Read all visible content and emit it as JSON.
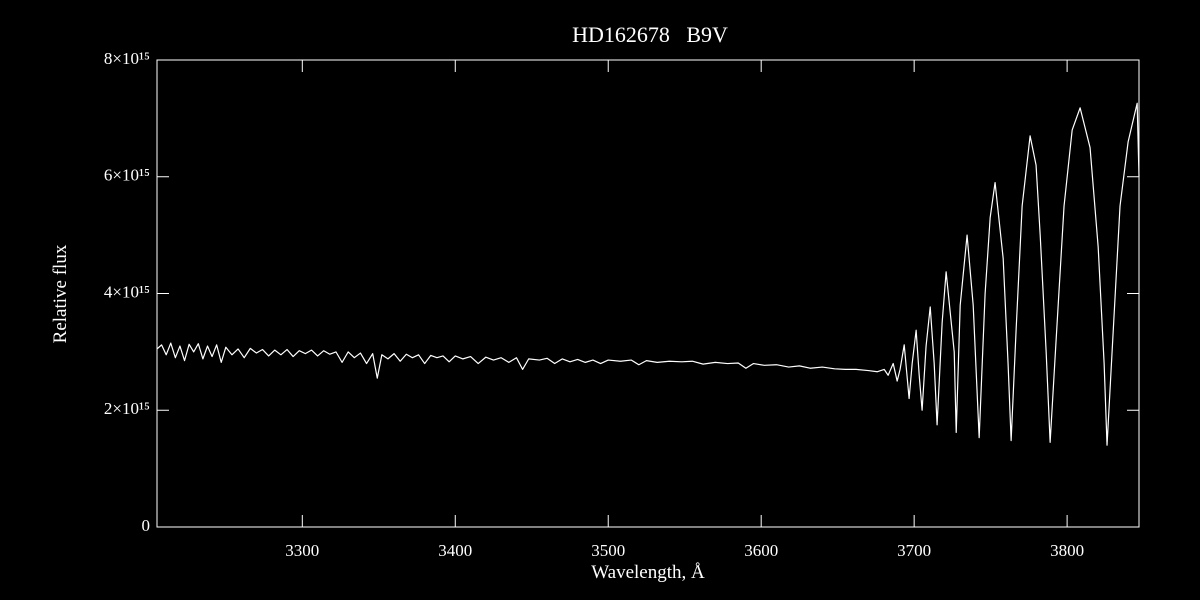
{
  "chart_data": {
    "type": "line",
    "title": "HD162678   B9V",
    "x_label": "Wavelength, Å",
    "y_label": "Relative flux",
    "color": "#ffffff",
    "xlim": [
      3205,
      3847
    ],
    "xticks": [
      3300,
      3400,
      3500,
      3600,
      3700,
      3800
    ],
    "ylim": [
      0,
      8000000000000000.0
    ],
    "yticks": [
      0,
      {
        "value": 2000000000000000.0,
        "label": "2×10¹⁵"
      },
      {
        "value": 4000000000000000.0,
        "label": "4×10¹⁵"
      },
      {
        "value": 6000000000000000.0,
        "label": "6×10¹⁵"
      },
      {
        "value": 8000000000000000.0,
        "label": "8×10¹⁵"
      }
    ],
    "x": [
      3205,
      3208,
      3211,
      3214,
      3217,
      3220,
      3223,
      3226,
      3229,
      3232,
      3235,
      3238,
      3241,
      3244,
      3247,
      3250,
      3254,
      3258,
      3262,
      3266,
      3270,
      3274,
      3278,
      3282,
      3286,
      3290,
      3294,
      3298,
      3302,
      3306,
      3310,
      3314,
      3318,
      3322,
      3326,
      3330,
      3334,
      3338,
      3342,
      3346,
      3349,
      3352,
      3356,
      3360,
      3364,
      3368,
      3372,
      3376,
      3380,
      3384,
      3388,
      3392,
      3396,
      3400,
      3405,
      3410,
      3415,
      3420,
      3425,
      3430,
      3435,
      3440,
      3444,
      3448,
      3455,
      3460,
      3465,
      3470,
      3475,
      3480,
      3485,
      3490,
      3495,
      3500,
      3508,
      3515,
      3520,
      3525,
      3532,
      3540,
      3548,
      3555,
      3562,
      3570,
      3578,
      3585,
      3590,
      3595,
      3602,
      3610,
      3618,
      3625,
      3632,
      3640,
      3648,
      3655,
      3662,
      3670,
      3676,
      3680.4,
      3683.0,
      3686.3,
      3688.9,
      3690.8,
      3693.5,
      3696.7,
      3698.7,
      3701.3,
      3703.3,
      3705.2,
      3707.8,
      3710.5,
      3713.1,
      3715.0,
      3718.3,
      3720.9,
      3726.2,
      3727.5,
      3730.1,
      3734.6,
      3738.6,
      3742.5,
      3746.4,
      3749.7,
      3752.9,
      3758.2,
      3761.4,
      3763.4,
      3766.7,
      3770.6,
      3775.8,
      3779.7,
      3782.4,
      3786.3,
      3788.9,
      3792.8,
      3798.0,
      3803.3,
      3808.5,
      3815.0,
      3820.3,
      3824.2,
      3826.1,
      3829.4,
      3834.6,
      3839.9,
      3845.8,
      3847
    ],
    "values": [
      3050000000000000.0,
      3120000000000000.0,
      2950000000000000.0,
      3150000000000000.0,
      2900000000000000.0,
      3100000000000000.0,
      2850000000000000.0,
      3130000000000000.0,
      3000000000000000.0,
      3140000000000000.0,
      2880000000000000.0,
      3100000000000000.0,
      2920000000000000.0,
      3120000000000000.0,
      2820000000000000.0,
      3080000000000000.0,
      2950000000000000.0,
      3050000000000000.0,
      2900000000000000.0,
      3060000000000000.0,
      2980000000000000.0,
      3040000000000000.0,
      2930000000000000.0,
      3030000000000000.0,
      2950000000000000.0,
      3040000000000000.0,
      2920000000000000.0,
      3020000000000000.0,
      2970000000000000.0,
      3030000000000000.0,
      2930000000000000.0,
      3020000000000000.0,
      2960000000000000.0,
      3000000000000000.0,
      2820000000000000.0,
      3000000000000000.0,
      2900000000000000.0,
      2980000000000000.0,
      2800000000000000.0,
      2970000000000000.0,
      2550000000000000.0,
      2950000000000000.0,
      2880000000000000.0,
      2970000000000000.0,
      2840000000000000.0,
      2960000000000000.0,
      2900000000000000.0,
      2950000000000000.0,
      2800000000000000.0,
      2940000000000000.0,
      2900000000000000.0,
      2930000000000000.0,
      2830000000000000.0,
      2930000000000000.0,
      2880000000000000.0,
      2920000000000000.0,
      2800000000000000.0,
      2910000000000000.0,
      2860000000000000.0,
      2900000000000000.0,
      2820000000000000.0,
      2900000000000000.0,
      2700000000000000.0,
      2880000000000000.0,
      2860000000000000.0,
      2890000000000000.0,
      2800000000000000.0,
      2880000000000000.0,
      2830000000000000.0,
      2870000000000000.0,
      2820000000000000.0,
      2860000000000000.0,
      2800000000000000.0,
      2860000000000000.0,
      2840000000000000.0,
      2860000000000000.0,
      2780000000000000.0,
      2850000000000000.0,
      2820000000000000.0,
      2840000000000000.0,
      2830000000000000.0,
      2840000000000000.0,
      2790000000000000.0,
      2820000000000000.0,
      2800000000000000.0,
      2810000000000000.0,
      2720000000000000.0,
      2800000000000000.0,
      2770000000000000.0,
      2780000000000000.0,
      2740000000000000.0,
      2760000000000000.0,
      2720000000000000.0,
      2740000000000000.0,
      2710000000000000.0,
      2700000000000000.0,
      2700000000000000.0,
      2680000000000000.0,
      2660000000000000.0,
      2700000000000000.0,
      2600000000000000.0,
      2800000000000000.0,
      2500000000000000.0,
      2700000000000000.0,
      3120000000000000.0,
      2200000000000000.0,
      2800000000000000.0,
      3370000000000000.0,
      2600000000000000.0,
      2000000000000000.0,
      3100000000000000.0,
      3770000000000000.0,
      2800000000000000.0,
      1750000000000000.0,
      3500000000000000.0,
      4370000000000000.0,
      3000000000000000.0,
      1620000000000000.0,
      3800000000000000.0,
      5000000000000000.0,
      3800000000000000.0,
      1530000000000000.0,
      4000000000000000.0,
      5300000000000000.0,
      5900000000000000.0,
      4600000000000000.0,
      2800000000000000.0,
      1480000000000000.0,
      3400000000000000.0,
      5500000000000000.0,
      6700000000000000.0,
      6200000000000000.0,
      5000000000000000.0,
      3000000000000000.0,
      1450000000000000.0,
      3200000000000000.0,
      5500000000000000.0,
      6800000000000000.0,
      7180000000000000.0,
      6500000000000000.0,
      4800000000000000.0,
      2800000000000000.0,
      1400000000000000.0,
      3000000000000000.0,
      5500000000000000.0,
      6600000000000000.0,
      7260000000000000.0,
      6000000000000000.0
    ]
  }
}
